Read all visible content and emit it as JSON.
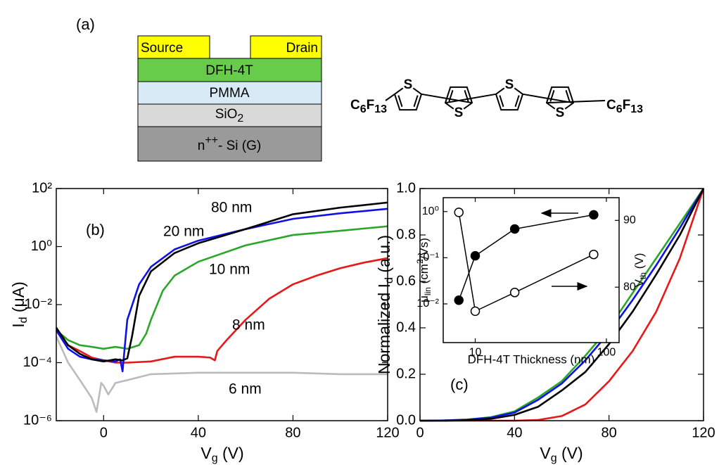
{
  "panel_a": {
    "label": "(a)",
    "source": "Source",
    "drain": "Drain",
    "layers": [
      [
        "DFH-4T"
      ],
      [
        "PMMA"
      ],
      [
        "SiO",
        "2"
      ],
      [
        "n",
        "++",
        "- Si (G)"
      ]
    ],
    "molecule": {
      "left_group": [
        "C",
        "6",
        "F",
        "13"
      ],
      "right_group": [
        "C",
        "6",
        "F",
        "13"
      ],
      "atoms": [
        "S",
        "S",
        "S",
        "S"
      ]
    }
  },
  "chart_data": [
    {
      "type": "line",
      "ylog": true,
      "annotations": [
        "(b)"
      ],
      "xlabel": [
        "V",
        "g",
        " (V)"
      ],
      "ylabel": [
        "I",
        "d",
        " (μA)"
      ],
      "xlim": [
        -20,
        120
      ],
      "xticks": [
        0,
        40,
        80,
        120
      ],
      "ylim": [
        1e-06,
        100
      ],
      "yticks": [
        {
          "value": 1e-06,
          "label": "10⁻⁶"
        },
        {
          "value": 0.0001,
          "label": "10⁻⁴"
        },
        {
          "value": 0.01,
          "label": "10⁻²"
        },
        {
          "value": 1,
          "label": "10⁰"
        },
        {
          "value": 100,
          "label": "10²"
        }
      ],
      "series": [
        {
          "name": "80 nm",
          "color": "#000000",
          "x": [
            -20,
            -15,
            -10,
            -5,
            0,
            5,
            8,
            10,
            12,
            15,
            20,
            30,
            40,
            60,
            80,
            100,
            120
          ],
          "values": [
            0.0016,
            0.0004,
            0.0002,
            0.00013,
            0.00011,
            0.00013,
            0.00012,
            0.00014,
            0.0008,
            0.02,
            0.14,
            0.6,
            1.3,
            4,
            13,
            22,
            33
          ]
        },
        {
          "name": "20 nm",
          "color": "#1010e8",
          "x": [
            -20,
            -15,
            -10,
            -5,
            0,
            5,
            7,
            8,
            9,
            10,
            15,
            20,
            30,
            40,
            60,
            80,
            100,
            120
          ],
          "values": [
            0.0013,
            0.0003,
            0.00016,
            0.00013,
            0.00012,
            0.00011,
            0.00013,
            5e-05,
            0.0004,
            0.003,
            0.05,
            0.2,
            0.8,
            1.6,
            4,
            9,
            14,
            20
          ]
        },
        {
          "name": "10 nm",
          "color": "#2aa62a",
          "x": [
            -20,
            -15,
            -10,
            -5,
            0,
            5,
            10,
            15,
            18,
            20,
            25,
            30,
            40,
            60,
            80,
            100,
            120
          ],
          "values": [
            0.0013,
            0.0006,
            0.0004,
            0.00035,
            0.0003,
            0.00035,
            0.0003,
            0.0004,
            0.001,
            0.003,
            0.03,
            0.1,
            0.3,
            1.1,
            2.5,
            3.5,
            5
          ]
        },
        {
          "name": "8 nm",
          "color": "#e81818",
          "x": [
            -20,
            -15,
            -10,
            -5,
            0,
            5,
            10,
            20,
            30,
            40,
            45,
            47,
            48,
            52,
            60,
            70,
            80,
            90,
            100,
            110,
            120
          ],
          "values": [
            0.0013,
            0.0004,
            0.00025,
            0.00015,
            0.00012,
            0.0001,
            0.0001,
            0.00011,
            0.00016,
            0.00016,
            0.00015,
            0.00012,
            0.00025,
            0.0006,
            0.003,
            0.016,
            0.05,
            0.1,
            0.18,
            0.28,
            0.4
          ]
        },
        {
          "name": "6 nm",
          "color": "#bbbbbb",
          "x": [
            -20,
            -15,
            -10,
            -5,
            -3,
            -1,
            0,
            2,
            5,
            10,
            20,
            40,
            60,
            80,
            100,
            120
          ],
          "values": [
            0.0008,
            0.0001,
            2.5e-05,
            6e-06,
            2e-06,
            2e-05,
            1.6e-05,
            8e-06,
            2e-05,
            2.5e-05,
            4e-05,
            4.5e-05,
            4.5e-05,
            4.5e-05,
            4e-05,
            4e-05
          ]
        }
      ]
    },
    {
      "type": "line",
      "annotations": [
        "(c)"
      ],
      "xlabel": [
        "V",
        "g",
        " (V)"
      ],
      "ylabel": [
        "Normalized I",
        "d",
        " (a.u.)"
      ],
      "xlim": [
        0,
        120
      ],
      "xticks": [
        0,
        40,
        80,
        120
      ],
      "ylim": [
        0,
        1
      ],
      "yticks": [
        {
          "value": 0,
          "label": "0.0"
        },
        0.2,
        0.4,
        0.6,
        0.8,
        {
          "value": 1,
          "label": "1.0"
        }
      ],
      "x": [
        0,
        10,
        20,
        30,
        40,
        50,
        60,
        70,
        80,
        90,
        100,
        110,
        120
      ],
      "series": [
        {
          "color": "#000000",
          "values": [
            0,
            0,
            0.002,
            0.008,
            0.025,
            0.06,
            0.13,
            0.21,
            0.33,
            0.47,
            0.63,
            0.8,
            1
          ]
        },
        {
          "color": "#1010e8",
          "values": [
            0,
            0.001,
            0.004,
            0.013,
            0.035,
            0.09,
            0.16,
            0.26,
            0.38,
            0.52,
            0.67,
            0.83,
            1
          ]
        },
        {
          "color": "#2aa62a",
          "values": [
            0,
            0.001,
            0.005,
            0.015,
            0.04,
            0.1,
            0.17,
            0.28,
            0.4,
            0.55,
            0.7,
            0.85,
            1
          ]
        },
        {
          "color": "#e81818",
          "values": [
            0,
            0,
            0,
            0,
            0,
            0.003,
            0.02,
            0.07,
            0.17,
            0.3,
            0.47,
            0.7,
            1
          ]
        }
      ]
    },
    {
      "type": "line",
      "markers": true,
      "xlog": true,
      "ylog": true,
      "xlabel": "DFH-4T Thickness (nm)",
      "ylabel": [
        "μ",
        "lin",
        " (cm",
        "2",
        "/Vs)"
      ],
      "y2label": [
        "V",
        "th",
        " (V)"
      ],
      "xlim": [
        5.7,
        125
      ],
      "xticks": [
        10,
        100
      ],
      "ylim": [
        0.00145,
        2
      ],
      "yticks": [
        {
          "value": 0.01,
          "label": "10⁻²"
        },
        {
          "value": 0.1,
          "label": "10⁻¹"
        },
        {
          "value": 1,
          "label": "10⁰"
        }
      ],
      "y2lim": [
        71.7,
        93.4
      ],
      "y2ticks": [
        80,
        90
      ],
      "series": [
        {
          "color": "#000000",
          "filled": true,
          "x": [
            7.5,
            10,
            20,
            80
          ],
          "values": [
            0.012,
            0.11,
            0.42,
            0.85
          ]
        },
        {
          "color": "#000000",
          "filled": false,
          "axis": "y2",
          "x": [
            7.5,
            10,
            20,
            80
          ],
          "values": [
            91.2,
            76.4,
            79.2,
            84.9
          ]
        }
      ]
    }
  ]
}
